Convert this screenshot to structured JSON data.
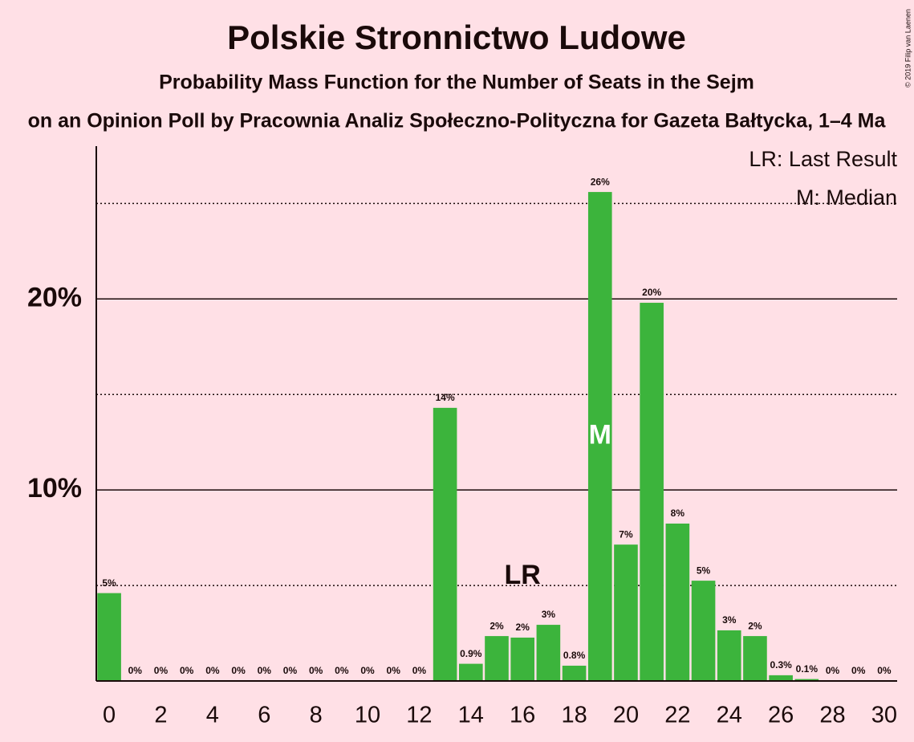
{
  "chart_data": {
    "type": "bar",
    "title": "Polskie Stronnictwo Ludowe",
    "subtitle": "Probability Mass Function for the Number of Seats in the Sejm",
    "subtitle2": "on an Opinion Poll by Pracownia Analiz Społeczno-Polityczna for Gazeta Bałtycka, 1–4 Ma",
    "copyright": "© 2019 Filip van Laenen",
    "x": [
      0,
      1,
      2,
      3,
      4,
      5,
      6,
      7,
      8,
      9,
      10,
      11,
      12,
      13,
      14,
      15,
      16,
      17,
      18,
      19,
      20,
      21,
      22,
      23,
      24,
      25,
      26,
      27,
      28,
      29,
      30
    ],
    "values": [
      4.6,
      0,
      0,
      0,
      0,
      0,
      0,
      0,
      0,
      0,
      0,
      0,
      0,
      14.3,
      0.9,
      2.35,
      2.27,
      2.94,
      0.8,
      25.6,
      7.14,
      19.8,
      8.24,
      5.25,
      2.65,
      2.35,
      0.3,
      0.1,
      0,
      0,
      0
    ],
    "value_labels": [
      "5%",
      "0%",
      "0%",
      "0%",
      "0%",
      "0%",
      "0%",
      "0%",
      "0%",
      "0%",
      "0%",
      "0%",
      "0%",
      "14%",
      "0.9%",
      "2%",
      "2%",
      "3%",
      "0.8%",
      "26%",
      "7%",
      "20%",
      "8%",
      "5%",
      "3%",
      "2%",
      "0.3%",
      "0.1%",
      "0%",
      "0%",
      "0%"
    ],
    "color": "#3cb43c",
    "xlim": [
      -0.5,
      30.5
    ],
    "xticks": [
      0,
      2,
      4,
      6,
      8,
      10,
      12,
      14,
      16,
      18,
      20,
      22,
      24,
      26,
      28,
      30
    ],
    "ylim": [
      0,
      28
    ],
    "yticks": [
      {
        "value": 10,
        "label": "10%"
      },
      {
        "value": 20,
        "label": "20%"
      }
    ],
    "minor_yticks": [
      5,
      15,
      25
    ],
    "grid": true,
    "annotations": [
      {
        "text": "LR",
        "x": 16
      },
      {
        "text": "M",
        "x": 19
      }
    ],
    "legend": [
      "LR: Last Result",
      "M: Median"
    ]
  }
}
